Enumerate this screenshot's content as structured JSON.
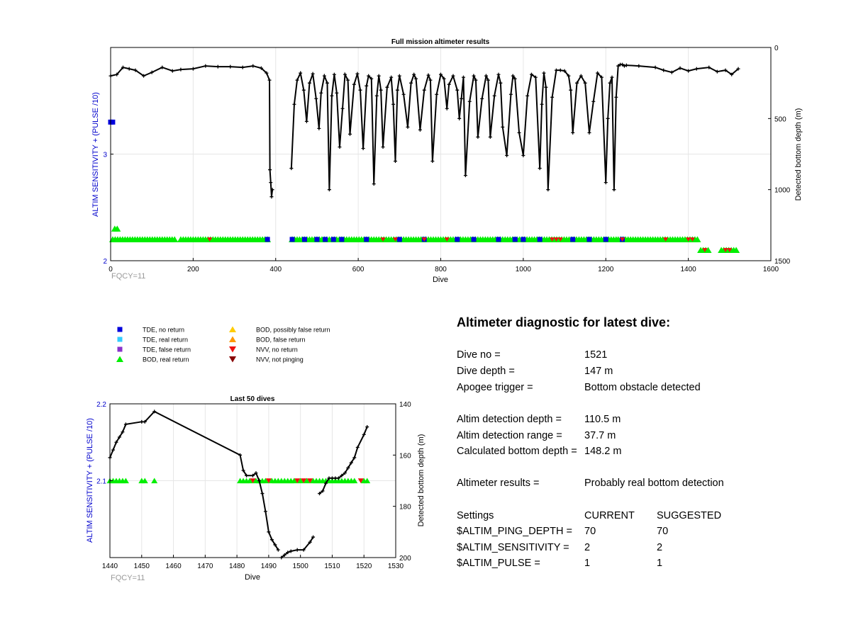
{
  "colors": {
    "axis_blue": "#0000cc",
    "grid": "#e6e6e6",
    "black": "#000000",
    "green": "#00ee00",
    "tde_no_return": "#0000dd",
    "tde_real_return": "#33ccff",
    "tde_false_return": "#8833cc",
    "bod_possibly_false": "#ffcc00",
    "bod_false": "#ff9900",
    "nvv_no_return": "#ee1111",
    "nvv_not_pinging": "#880000",
    "fqcy_gray": "#999999"
  },
  "legend": [
    {
      "label": "TDE, no return",
      "marker": "square",
      "color": "#0000dd"
    },
    {
      "label": "TDE, real return",
      "marker": "square",
      "color": "#33ccff"
    },
    {
      "label": "TDE, false return",
      "marker": "square",
      "color": "#8833cc"
    },
    {
      "label": "BOD, real return",
      "marker": "triangle-up",
      "color": "#00ee00"
    },
    {
      "label": "BOD, possibly false return",
      "marker": "triangle-up",
      "color": "#ffcc00"
    },
    {
      "label": "BOD, false return",
      "marker": "triangle-up",
      "color": "#ff9900"
    },
    {
      "label": "NVV, no return",
      "marker": "triangle-down",
      "color": "#ee1111"
    },
    {
      "label": "NVV, not pinging",
      "marker": "triangle-down",
      "color": "#880000"
    }
  ],
  "chart_data": [
    {
      "type": "scatter",
      "title": "Full mission altimeter results",
      "xlabel": "Dive",
      "ylabel_left": "ALTIM SENSITIVITY + (PULSE /10)",
      "ylabel_right": "Detected bottom depth (m)",
      "xlim": [
        0,
        1600
      ],
      "ylim_left": [
        2,
        4
      ],
      "ylim_right": [
        1500,
        0
      ],
      "right_axis_reversed": true,
      "x_ticks": [
        0,
        200,
        400,
        600,
        800,
        1000,
        1200,
        1400,
        1600
      ],
      "y_ticks_left": [
        2,
        3
      ],
      "y_ticks_right": [
        0,
        500,
        1000,
        1500
      ],
      "grid": true,
      "annotation": "FQCY=11",
      "series": [
        {
          "name": "Detected bottom depth",
          "axis": "right",
          "x": [
            0,
            15,
            30,
            45,
            60,
            80,
            100,
            125,
            150,
            170,
            200,
            230,
            260,
            290,
            320,
            345,
            365,
            378,
            385,
            386,
            388,
            390,
            392,
            438,
            445,
            452,
            460,
            468,
            475,
            482,
            490,
            498,
            505,
            510,
            518,
            525,
            530,
            536,
            542,
            548,
            555,
            562,
            568,
            575,
            580,
            590,
            598,
            605,
            612,
            620,
            625,
            632,
            638,
            645,
            650,
            655,
            660,
            670,
            680,
            685,
            690,
            695,
            700,
            710,
            720,
            728,
            735,
            740,
            750,
            760,
            770,
            775,
            780,
            790,
            800,
            808,
            815,
            820,
            830,
            840,
            845,
            850,
            855,
            860,
            870,
            880,
            885,
            890,
            900,
            910,
            915,
            920,
            930,
            940,
            945,
            950,
            960,
            970,
            975,
            980,
            990,
            1000,
            1010,
            1020,
            1030,
            1040,
            1045,
            1050,
            1055,
            1060,
            1070,
            1080,
            1090,
            1100,
            1110,
            1115,
            1120,
            1130,
            1140,
            1150,
            1160,
            1170,
            1180,
            1190,
            1200,
            1205,
            1210,
            1215,
            1220,
            1225,
            1230,
            1235,
            1240,
            1245,
            1250,
            1280,
            1320,
            1340,
            1360,
            1380,
            1400,
            1420,
            1450,
            1470,
            1490,
            1505,
            1521
          ],
          "y": [
            200,
            190,
            140,
            150,
            160,
            200,
            175,
            140,
            165,
            155,
            150,
            130,
            135,
            135,
            140,
            130,
            145,
            180,
            230,
            860,
            950,
            1050,
            1000,
            850,
            400,
            230,
            180,
            300,
            520,
            250,
            185,
            360,
            570,
            320,
            200,
            250,
            1000,
            340,
            190,
            320,
            700,
            430,
            190,
            230,
            610,
            260,
            185,
            300,
            710,
            270,
            200,
            220,
            960,
            340,
            200,
            300,
            700,
            280,
            210,
            400,
            800,
            300,
            200,
            330,
            560,
            250,
            190,
            220,
            580,
            300,
            195,
            230,
            800,
            330,
            190,
            220,
            430,
            260,
            200,
            300,
            500,
            360,
            210,
            900,
            380,
            200,
            230,
            630,
            360,
            200,
            230,
            630,
            340,
            190,
            250,
            560,
            760,
            330,
            200,
            220,
            600,
            760,
            340,
            190,
            210,
            850,
            400,
            180,
            280,
            1000,
            350,
            160,
            160,
            165,
            200,
            300,
            600,
            250,
            200,
            250,
            600,
            380,
            180,
            210,
            950,
            500,
            250,
            210,
            1000,
            350,
            130,
            120,
            120,
            130,
            125,
            130,
            140,
            160,
            175,
            145,
            165,
            150,
            140,
            170,
            160,
            190,
            150
          ]
        },
        {
          "name": "BOD, real return",
          "axis": "left",
          "marker": "triangle-up",
          "segments": [
            [
              10,
              20,
              2.3
            ],
            [
              5,
              160,
              2.2
            ],
            [
              170,
              380,
              2.2
            ],
            [
              440,
              980,
              2.2
            ],
            [
              985,
              1230,
              2.2
            ],
            [
              1230,
              1425,
              2.2
            ],
            [
              1430,
              1450,
              2.1
            ],
            [
              1480,
              1520,
              2.1
            ]
          ]
        },
        {
          "name": "TDE, no return",
          "axis": "left",
          "marker": "square",
          "points": [
            [
              0,
              3.3
            ],
            [
              5,
              3.3
            ],
            [
              380,
              2.2
            ],
            [
              440,
              2.2
            ],
            [
              470,
              2.2
            ],
            [
              500,
              2.2
            ],
            [
              520,
              2.2
            ],
            [
              540,
              2.2
            ],
            [
              560,
              2.2
            ],
            [
              620,
              2.2
            ],
            [
              700,
              2.2
            ],
            [
              760,
              2.2
            ],
            [
              840,
              2.2
            ],
            [
              880,
              2.2
            ],
            [
              940,
              2.2
            ],
            [
              980,
              2.2
            ],
            [
              1000,
              2.2
            ],
            [
              1040,
              2.2
            ],
            [
              1120,
              2.2
            ],
            [
              1160,
              2.2
            ],
            [
              1200,
              2.2
            ],
            [
              1240,
              2.2
            ]
          ]
        },
        {
          "name": "NVV, no return",
          "axis": "left",
          "marker": "triangle-down",
          "points": [
            [
              240,
              2.2
            ],
            [
              660,
              2.2
            ],
            [
              690,
              2.2
            ],
            [
              760,
              2.2
            ],
            [
              815,
              2.2
            ],
            [
              1070,
              2.2
            ],
            [
              1080,
              2.2
            ],
            [
              1090,
              2.2
            ],
            [
              1240,
              2.2
            ],
            [
              1345,
              2.2
            ],
            [
              1400,
              2.2
            ],
            [
              1410,
              2.2
            ],
            [
              1440,
              2.1
            ],
            [
              1490,
              2.1
            ],
            [
              1500,
              2.1
            ]
          ]
        }
      ]
    },
    {
      "type": "scatter",
      "title": "Last 50 dives",
      "xlabel": "Dive",
      "ylabel_left": "ALTIM SENSITIVITY + (PULSE /10)",
      "ylabel_right": "Detected bottom depth (m)",
      "xlim": [
        1440,
        1530
      ],
      "ylim_left": [
        2.0,
        2.2
      ],
      "ylim_right": [
        200,
        140
      ],
      "right_axis_reversed": true,
      "x_ticks": [
        1440,
        1450,
        1460,
        1470,
        1480,
        1490,
        1500,
        1510,
        1520,
        1530
      ],
      "y_ticks_left": [
        2.1,
        2.2
      ],
      "y_ticks_right": [
        140,
        160,
        180,
        200
      ],
      "grid": true,
      "annotation": "FQCY=11",
      "series": [
        {
          "name": "Detected bottom depth",
          "axis": "right",
          "segments": [
            {
              "x": [
                1440,
                1441,
                1442,
                1443,
                1444,
                1445,
                1450,
                1451,
                1454,
                1481,
                1482,
                1483,
                1485,
                1486,
                1487,
                1488,
                1489,
                1490,
                1491,
                1492,
                1493
              ],
              "y": [
                161,
                158,
                155,
                153,
                151,
                148,
                147,
                147,
                143,
                160,
                166,
                168,
                168,
                167,
                170,
                175,
                182,
                190,
                193,
                195,
                197
              ]
            },
            {
              "x": [
                1494,
                1495,
                1496,
                1497,
                1499,
                1501,
                1503,
                1504
              ],
              "y": [
                200,
                199,
                198,
                197.5,
                197,
                197,
                194,
                192
              ]
            },
            {
              "x": [
                1506,
                1507,
                1508,
                1509,
                1510,
                1511,
                1512,
                1513,
                1514,
                1515,
                1516,
                1517,
                1518,
                1520,
                1521
              ],
              "y": [
                175,
                174,
                171,
                169,
                169,
                169,
                169,
                168,
                167,
                165,
                163,
                161,
                157,
                152,
                149
              ]
            }
          ]
        },
        {
          "name": "BOD, real return",
          "axis": "left",
          "marker": "triangle-up",
          "points": [
            1440,
            1441,
            1442,
            1443,
            1444,
            1445,
            1450,
            1451,
            1454,
            1481,
            1482,
            1483,
            1484,
            1486,
            1487,
            1488,
            1489,
            1491,
            1492,
            1493,
            1494,
            1495,
            1496,
            1497,
            1498,
            1500,
            1502,
            1504,
            1505,
            1506,
            1507,
            1508,
            1509,
            1510,
            1511,
            1512,
            1513,
            1514,
            1515,
            1516,
            1517,
            1520,
            1521
          ]
        },
        {
          "name": "NVV, no return",
          "axis": "left",
          "marker": "triangle-down",
          "points": [
            1485,
            1490,
            1499,
            1501,
            1503,
            1519
          ]
        }
      ]
    }
  ],
  "diagnostic": {
    "title": "Altimeter diagnostic for latest dive:",
    "rows": [
      {
        "label": "Dive no =",
        "value": "1521"
      },
      {
        "label": "Dive depth =",
        "value": "147 m"
      },
      {
        "label": "Apogee trigger =",
        "value": "Bottom obstacle detected"
      },
      {
        "label": "Altim detection depth =",
        "value": "110.5 m"
      },
      {
        "label": "Altim detection range =",
        "value": "37.7 m"
      },
      {
        "label": "Calculated bottom depth =",
        "value": "148.2 m"
      },
      {
        "label": "Altimeter results =",
        "value": "Probably real bottom detection"
      }
    ],
    "settings_header": {
      "label": "Settings",
      "current": "CURRENT",
      "suggested": "SUGGESTED"
    },
    "settings": [
      {
        "label": "$ALTIM_PING_DEPTH =",
        "current": "70",
        "suggested": "70"
      },
      {
        "label": "$ALTIM_SENSITIVITY =",
        "current": "2",
        "suggested": "2"
      },
      {
        "label": "$ALTIM_PULSE =",
        "current": "1",
        "suggested": "1"
      }
    ]
  }
}
